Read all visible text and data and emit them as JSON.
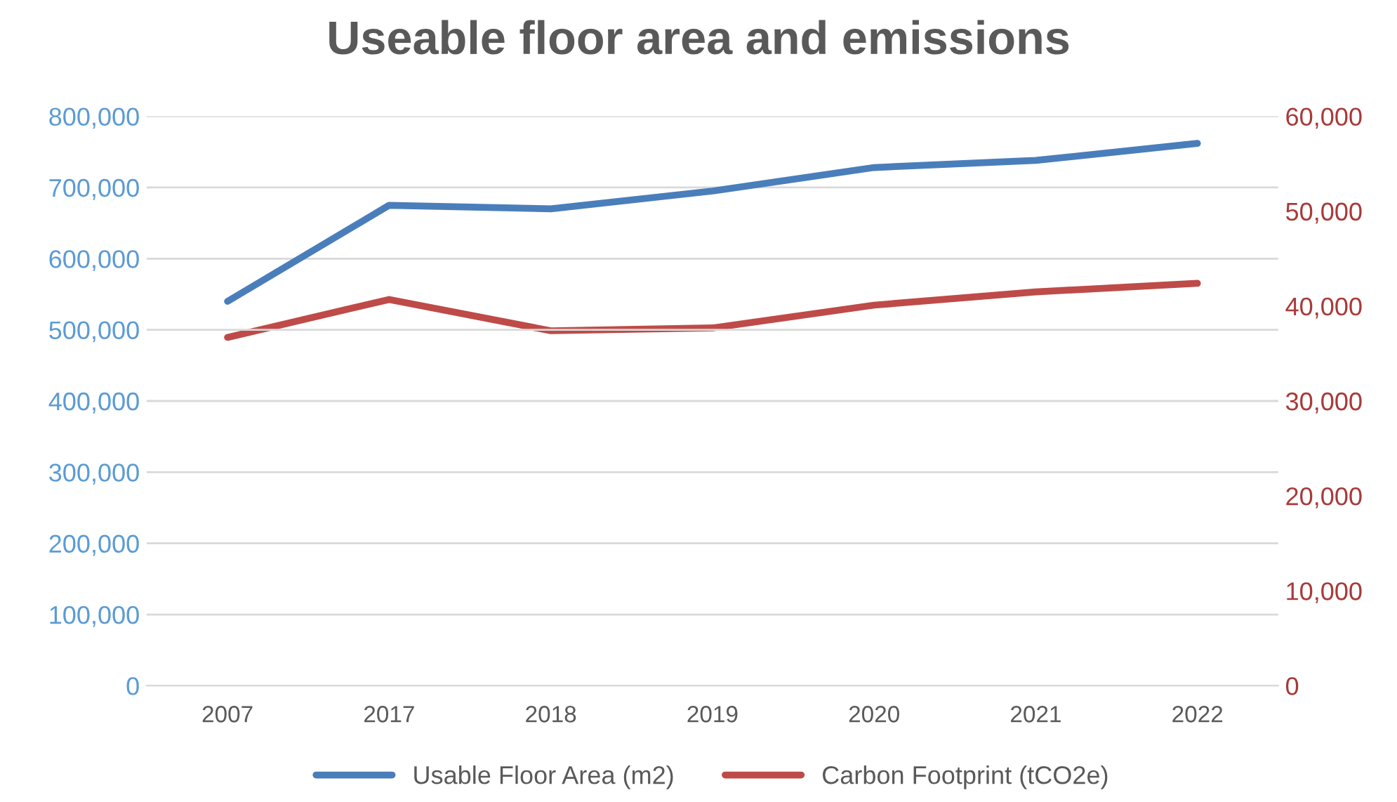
{
  "chart_data": {
    "type": "line",
    "title": "Useable floor area and emissions",
    "categories": [
      "2007",
      "2017",
      "2018",
      "2019",
      "2020",
      "2021",
      "2022"
    ],
    "series": [
      {
        "name": "Usable Floor Area (m2)",
        "color": "#4a7ebb",
        "values": [
          540000,
          675000,
          670000,
          695000,
          728000,
          738000,
          762000
        ]
      },
      {
        "name": "Carbon Footprint (tCO2e)",
        "color": "#be4b48",
        "axis": "y2",
        "values": [
          36700,
          40700,
          37400,
          37700,
          40100,
          41500,
          42400
        ]
      }
    ],
    "ylim": [
      0,
      800000
    ],
    "yticks": [
      0,
      {
        "value": 100000,
        "label": "100,000"
      },
      {
        "value": 200000,
        "label": "200,000"
      },
      {
        "value": 300000,
        "label": "300,000"
      },
      {
        "value": 400000,
        "label": "400,000"
      },
      {
        "value": 500000,
        "label": "500,000"
      },
      {
        "value": 600000,
        "label": "600,000"
      },
      {
        "value": 700000,
        "label": "700,000"
      },
      {
        "value": 800000,
        "label": "800,000"
      }
    ],
    "y2lim": [
      0,
      60000
    ],
    "y2ticks": [
      0,
      {
        "value": 10000,
        "label": "10,000"
      },
      {
        "value": 20000,
        "label": "20,000"
      },
      {
        "value": 30000,
        "label": "30,000"
      },
      {
        "value": 40000,
        "label": "40,000"
      },
      {
        "value": 50000,
        "label": "50,000"
      },
      {
        "value": 60000,
        "label": "60,000"
      }
    ],
    "grid": "y",
    "legend": "bottom",
    "marker": "none",
    "line_style": "solid"
  }
}
